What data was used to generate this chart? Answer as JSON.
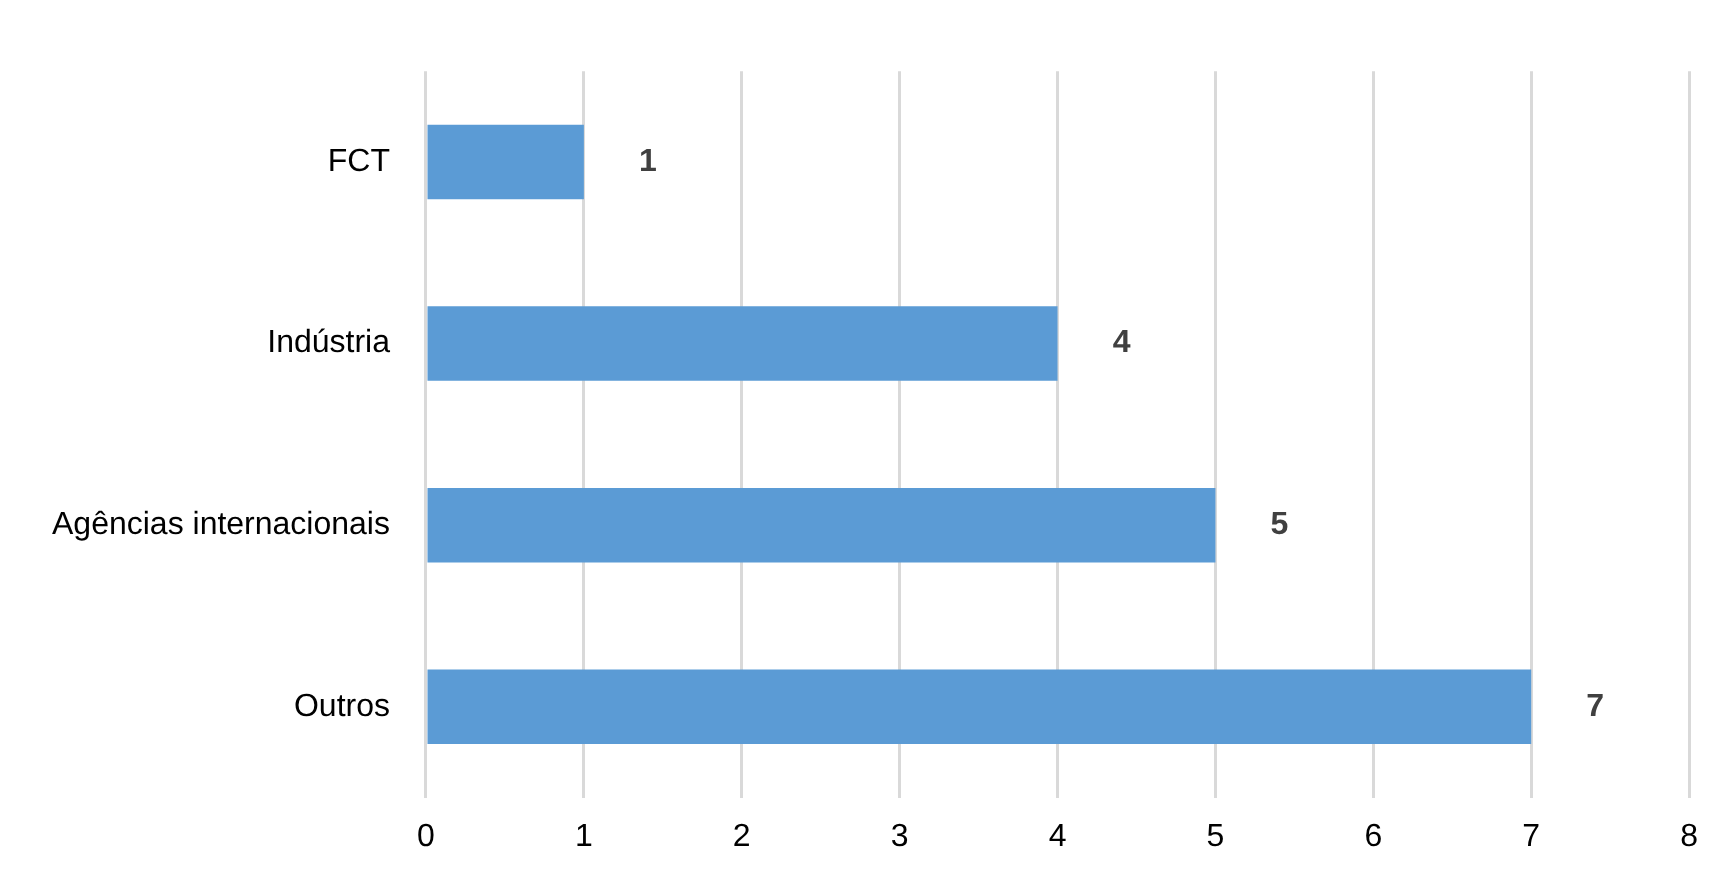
{
  "chart_data": {
    "type": "bar",
    "orientation": "horizontal",
    "categories": [
      "FCT",
      "Indústria",
      "Agências internacionais",
      "Outros"
    ],
    "values": [
      1,
      4,
      5,
      7
    ],
    "color": "#5b9bd5",
    "xlim": [
      0,
      8
    ],
    "xticks": [
      0,
      1,
      2,
      3,
      4,
      5,
      6,
      7,
      8
    ],
    "grid": "x",
    "data_labels": true
  }
}
